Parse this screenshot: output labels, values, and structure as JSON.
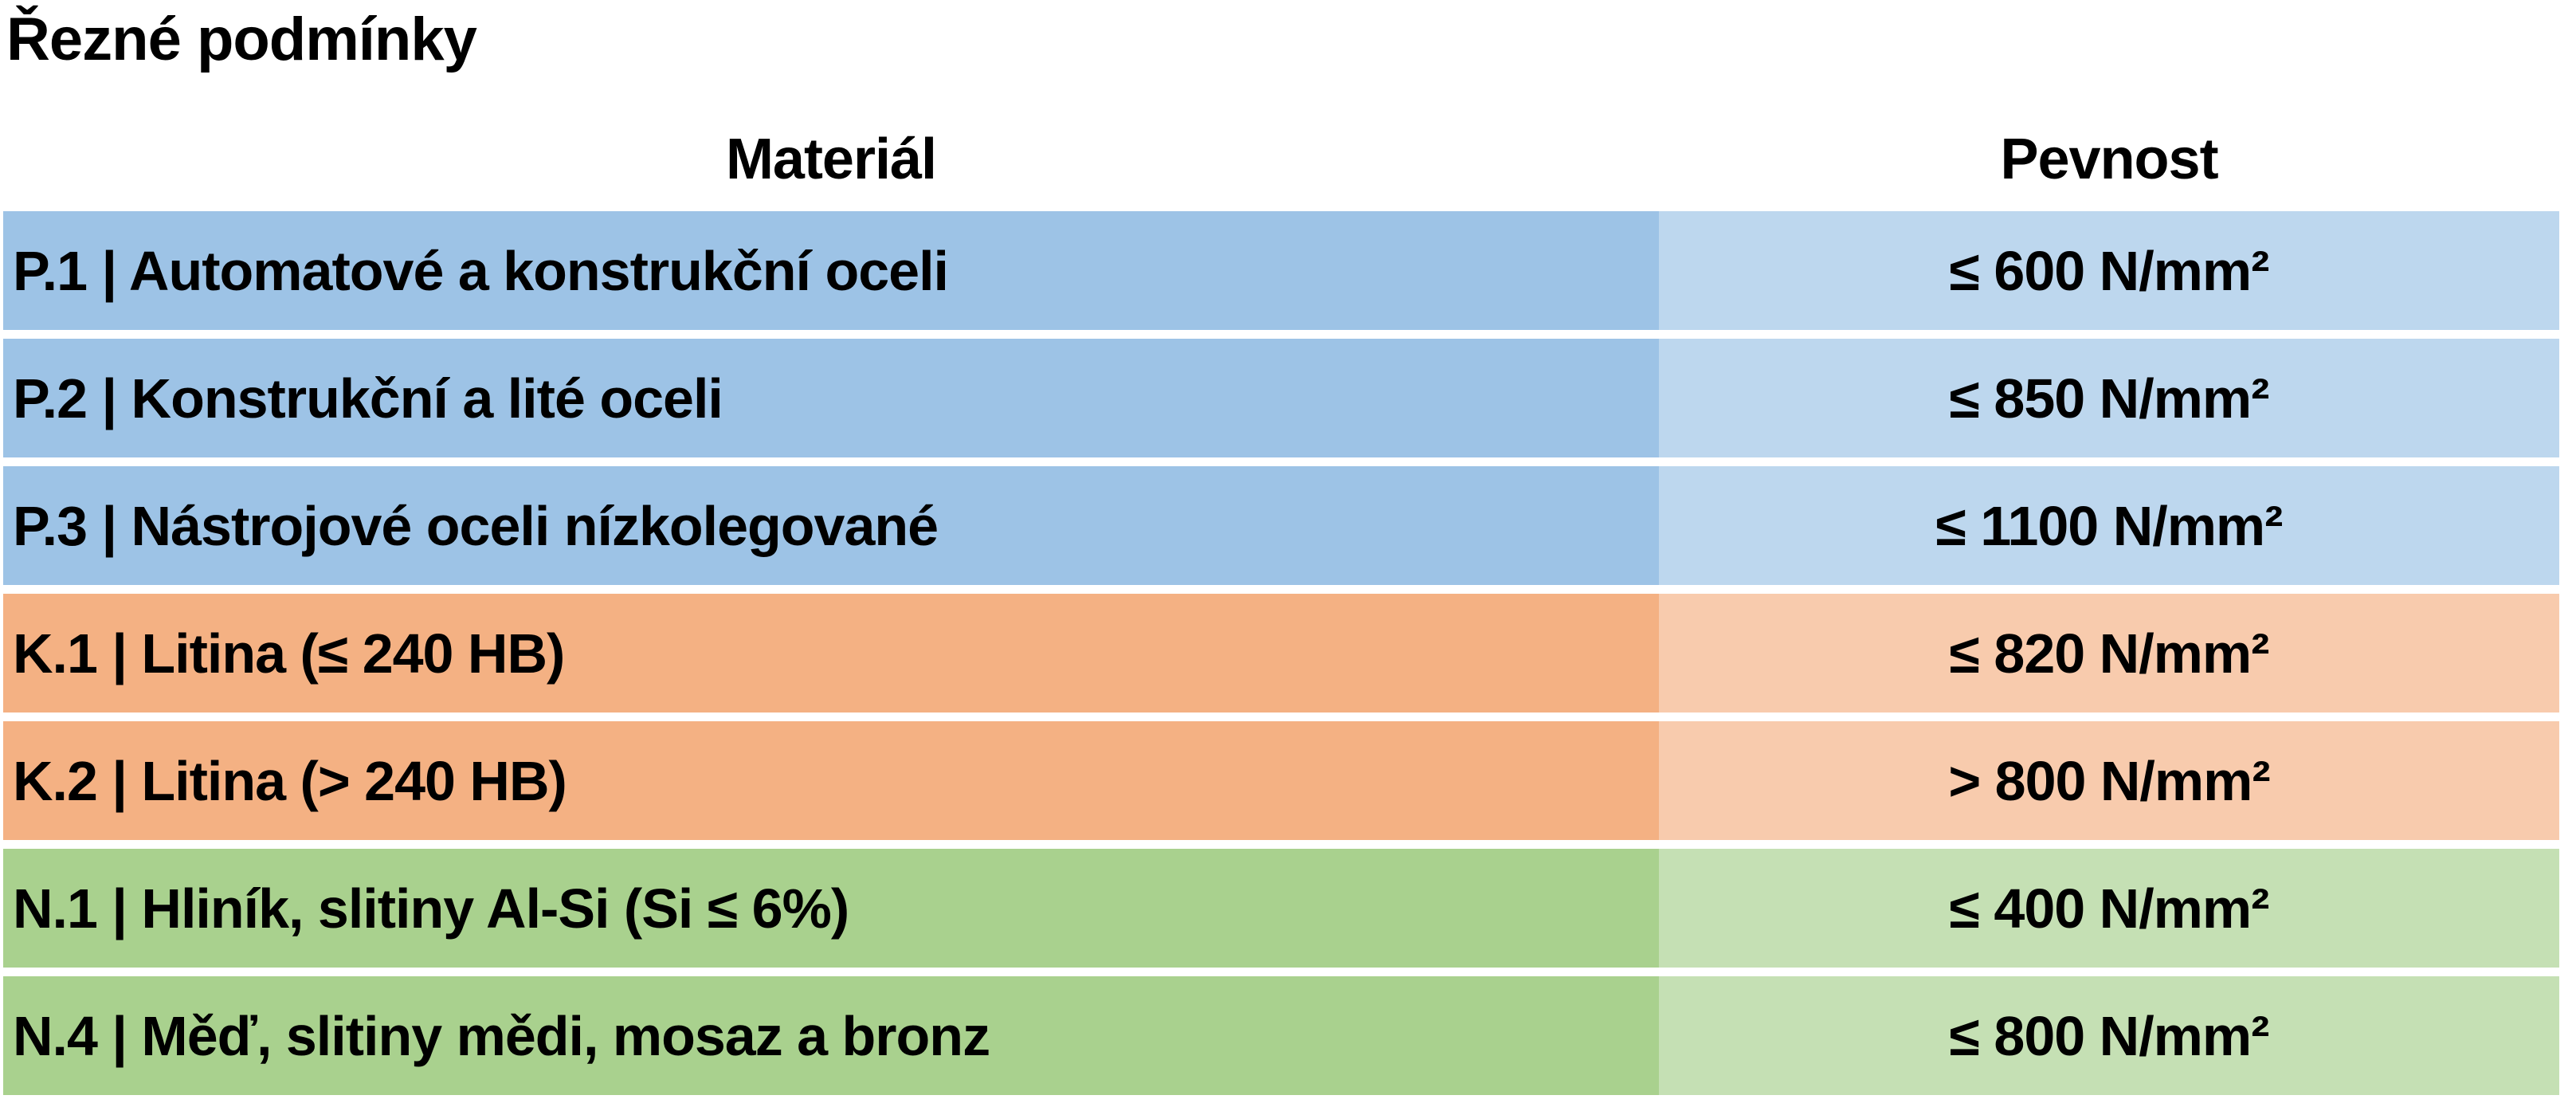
{
  "page": {
    "title": "Řezné podmínky",
    "background_color": "#ffffff",
    "text_color": "#000000"
  },
  "table": {
    "column_headers": {
      "material": "Materiál",
      "strength": "Pevnost"
    },
    "groups": {
      "P": {
        "material_bg": "#9DC3E6",
        "strength_bg": "#BDD7EE"
      },
      "K": {
        "material_bg": "#F4B183",
        "strength_bg": "#F8CBAD"
      },
      "N": {
        "material_bg": "#A9D18E",
        "strength_bg": "#C5E0B4"
      }
    },
    "rows": [
      {
        "group": "P",
        "material": "P.1 | Automatové a konstrukční oceli",
        "strength": "≤ 600 N/mm²"
      },
      {
        "group": "P",
        "material": "P.2 | Konstrukční a lité oceli",
        "strength": "≤ 850 N/mm²"
      },
      {
        "group": "P",
        "material": "P.3 | Nástrojové oceli nízkolegované",
        "strength": "≤ 1100 N/mm²"
      },
      {
        "group": "K",
        "material": "K.1 | Litina (≤ 240 HB)",
        "strength": "≤ 820 N/mm²"
      },
      {
        "group": "K",
        "material": "K.2 | Litina (> 240 HB)",
        "strength": "> 800 N/mm²"
      },
      {
        "group": "N",
        "material": "N.1 | Hliník, slitiny Al-Si (Si ≤ 6%)",
        "strength": "≤ 400 N/mm²"
      },
      {
        "group": "N",
        "material": "N.4 | Měď, slitiny mědi, mosaz a bronz",
        "strength": "≤ 800 N/mm²"
      }
    ]
  }
}
